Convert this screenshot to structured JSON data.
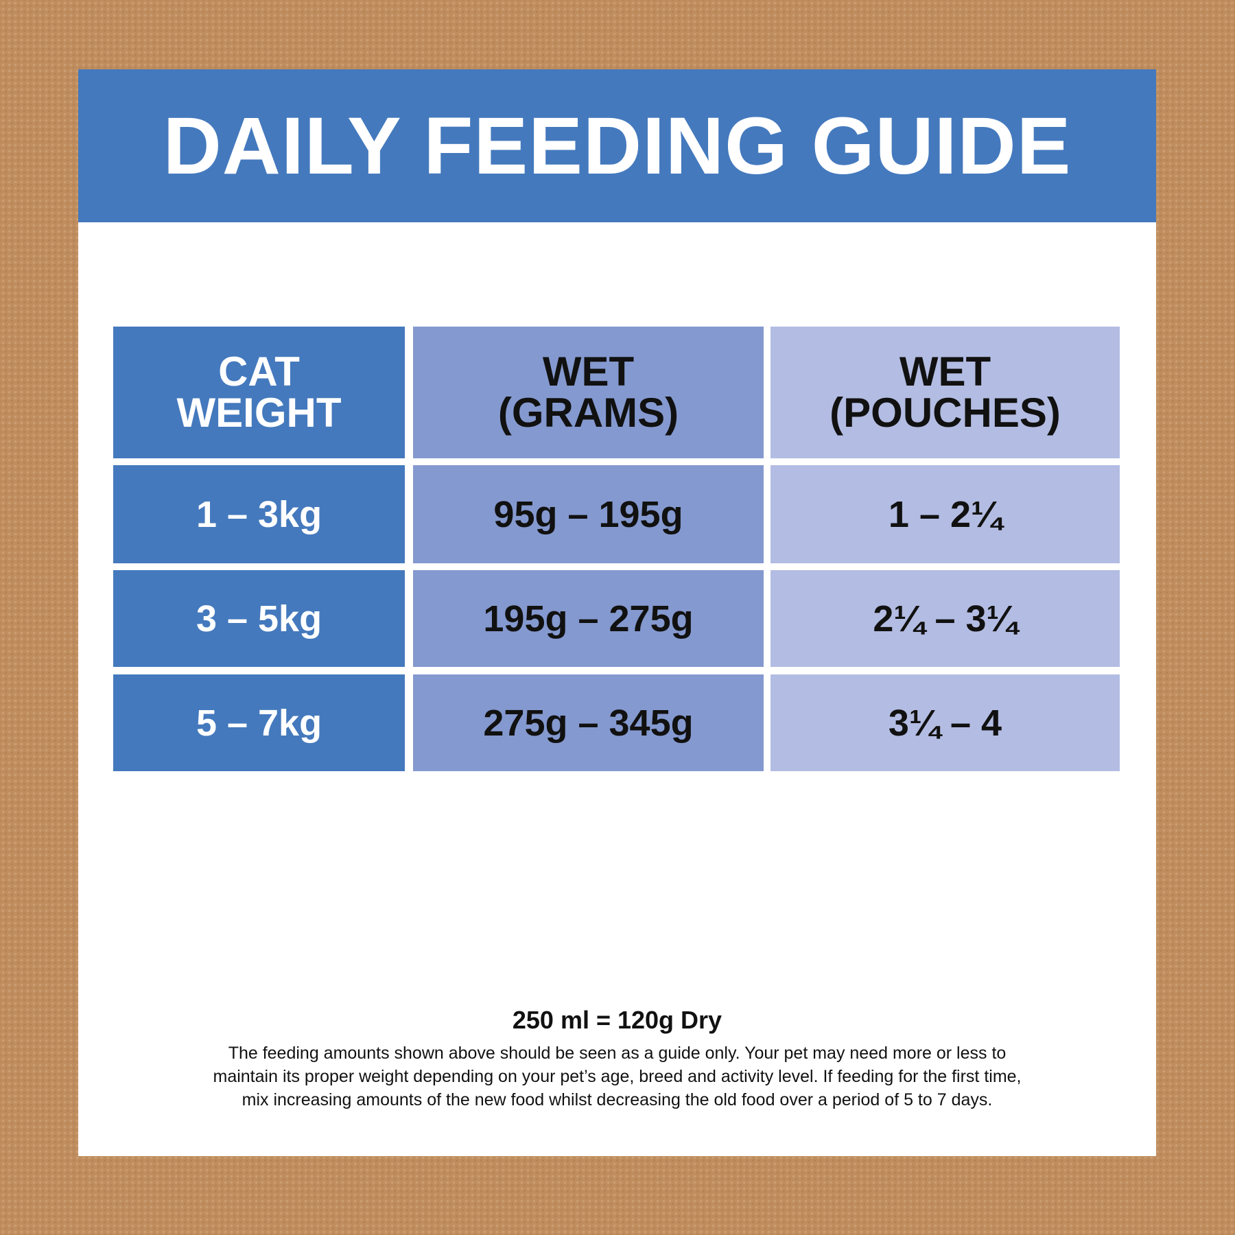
{
  "title": "DAILY FEEDING GUIDE",
  "colors": {
    "banner": "#4479bd",
    "col_weight": "#4479bd",
    "col_grams": "#8499cf",
    "col_pouches": "#b3bce2",
    "background": "#c08d5e"
  },
  "table": {
    "headers": [
      [
        "CAT",
        "WEIGHT"
      ],
      [
        "WET",
        "(GRAMS)"
      ],
      [
        "WET",
        "(POUCHES)"
      ]
    ],
    "rows": [
      [
        "1 – 3kg",
        "95g – 195g",
        "1 – 2¼"
      ],
      [
        "3 – 5kg",
        "195g – 275g",
        "2¼ – 3¼"
      ],
      [
        "5 – 7kg",
        "275g – 345g",
        "3¼ – 4"
      ]
    ]
  },
  "footer": {
    "ratio": "250 ml = 120g Dry",
    "note_lines": [
      "The feeding amounts shown above should be seen as a guide only. Your pet may need more or less to",
      "maintain its proper weight depending on your pet’s age, breed and activity level. If feeding for the first time,",
      "mix increasing amounts of the new food whilst decreasing the old food over a period of 5 to 7 days."
    ]
  }
}
